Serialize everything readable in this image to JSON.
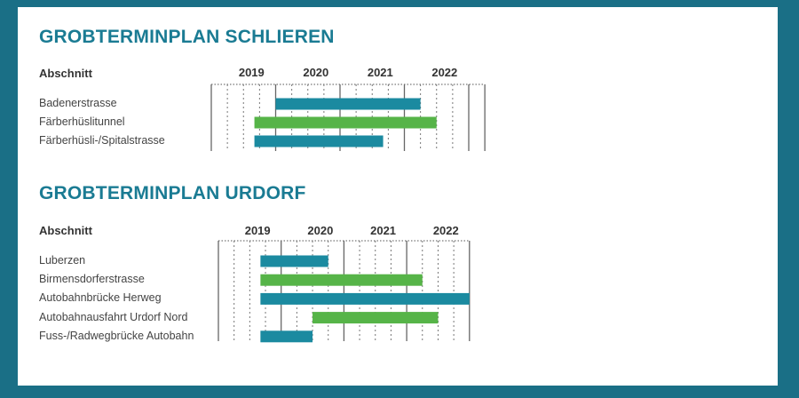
{
  "colors": {
    "background": "#1a6f86",
    "title": "#1a7b93",
    "teal": "#1b8aa0",
    "green": "#56b448"
  },
  "chart_data": [
    {
      "type": "gantt",
      "title": "GROBTERMINPLAN SCHLIEREN",
      "column_label": "Abschnitt",
      "years": [
        "2019",
        "2020",
        "2021",
        "2022"
      ],
      "xlim": [
        2018.75,
        2023.0
      ],
      "tasks": [
        {
          "label": "Badenerstrasse",
          "start": 2019.75,
          "end": 2022.0,
          "color": "teal"
        },
        {
          "label": "Färberhüslitunnel",
          "start": 2019.42,
          "end": 2022.25,
          "color": "green"
        },
        {
          "label": "Färberhüsli-/Spitalstrasse",
          "start": 2019.42,
          "end": 2021.42,
          "color": "teal"
        }
      ]
    },
    {
      "type": "gantt",
      "title": "GROBTERMINPLAN URDORF",
      "column_label": "Abschnitt",
      "years": [
        "2019",
        "2020",
        "2021",
        "2022"
      ],
      "xlim": [
        2018.75,
        2022.75
      ],
      "tasks": [
        {
          "label": "Luberzen",
          "start": 2019.42,
          "end": 2020.5,
          "color": "teal"
        },
        {
          "label": "Birmensdorferstrasse",
          "start": 2019.42,
          "end": 2022.0,
          "color": "green"
        },
        {
          "label": "Autobahnbrücke Herweg",
          "start": 2019.42,
          "end": 2022.75,
          "color": "teal"
        },
        {
          "label": "Autobahnausfahrt Urdorf Nord",
          "start": 2020.25,
          "end": 2022.25,
          "color": "green"
        },
        {
          "label": "Fuss-/Radwegbrücke Autobahn",
          "start": 2019.42,
          "end": 2020.25,
          "color": "teal"
        }
      ]
    }
  ]
}
